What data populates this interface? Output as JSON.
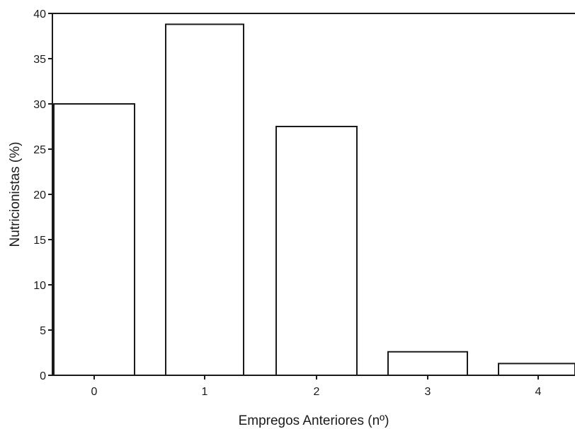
{
  "chart_data": {
    "type": "bar",
    "title": "",
    "xlabel": "Empregos Anteriores (nº)",
    "ylabel": "Nutricionistas (%)",
    "categories": [
      "0",
      "1",
      "2",
      "3",
      "4"
    ],
    "values": [
      30.0,
      38.8,
      27.5,
      2.6,
      1.3
    ],
    "ylim": [
      0,
      40
    ],
    "yticks": [
      "0",
      "5",
      "10",
      "15",
      "20",
      "25",
      "30",
      "35",
      "40"
    ],
    "grid": false,
    "legend": "none",
    "colors": {
      "bar_fill": "#ffffff",
      "stroke": "#1a1a1a"
    }
  }
}
